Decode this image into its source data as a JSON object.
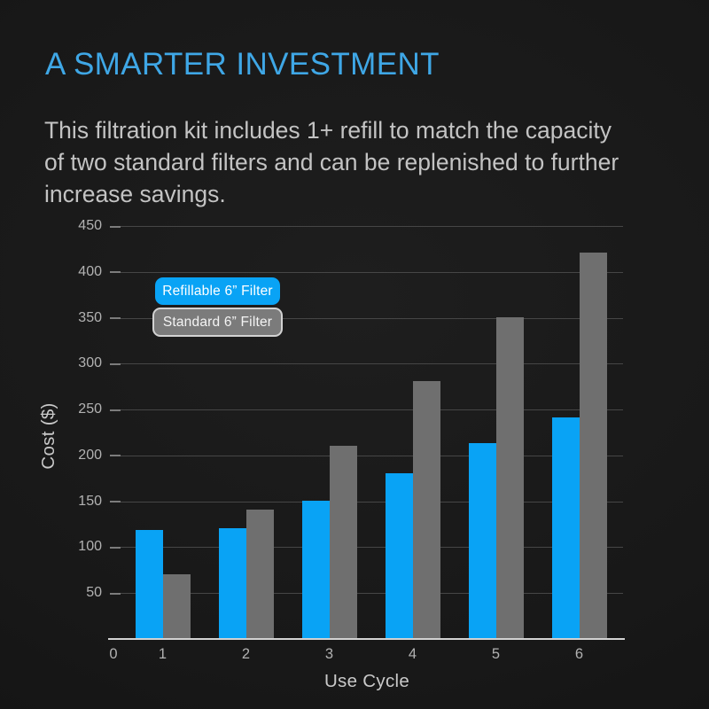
{
  "header": {
    "title": "A SMARTER INVESTMENT",
    "subtitle_lines": [
      "This filtration kit includes 1+ refill to match the capacity",
      "of two standard filters and can be replenished to further",
      "increase savings."
    ]
  },
  "legend": {
    "items": [
      {
        "label": "Refillable 6” Filter",
        "style": "blue"
      },
      {
        "label": "Standard 6” Filter",
        "style": "gray"
      }
    ]
  },
  "chart_data": {
    "type": "bar",
    "title": "",
    "xlabel": "Use Cycle",
    "ylabel": "Cost ($)",
    "categories": [
      "1",
      "2",
      "3",
      "4",
      "5",
      "6"
    ],
    "x_axis_labels_shown": [
      "0",
      "1",
      "2",
      "3",
      "4",
      "5",
      "6"
    ],
    "series": [
      {
        "name": "Refillable 6” Filter",
        "color": "#09a3f5",
        "values": [
          118,
          120,
          150,
          180,
          212,
          240
        ]
      },
      {
        "name": "Standard 6” Filter",
        "color": "#6f6f6f",
        "values": [
          70,
          140,
          210,
          280,
          350,
          420
        ]
      }
    ],
    "ylim": [
      0,
      450
    ],
    "yticks": [
      450,
      400,
      350,
      300,
      250,
      200,
      150,
      100,
      50
    ],
    "ytick_interval": 50,
    "grid": true,
    "legend_position": "upper-left-inside"
  },
  "colors": {
    "background": "#181818",
    "title": "#3fa7e6",
    "subtitle": "#c3c3c3",
    "bar_blue": "#09a3f5",
    "bar_gray": "#6f6f6f",
    "legend_blue_bg": "#09a3f5",
    "legend_gray_bg": "#7b7b7b",
    "legend_gray_border": "#d2d2d2",
    "legend_text": "#ffffff",
    "gridline": "#464646",
    "axis_line": "#d2d2d2",
    "axis_tick_text": "#b2b2b2",
    "axis_title_text": "#c9c9c9"
  }
}
